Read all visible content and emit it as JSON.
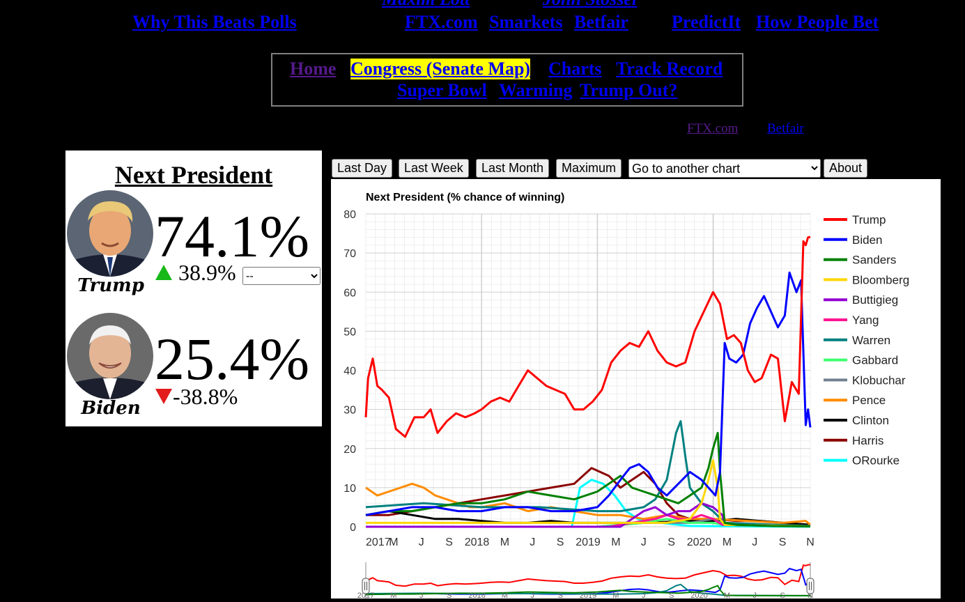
{
  "header": {
    "partial_links": [
      "Maxim Lott",
      "John Stossel"
    ],
    "links": [
      "Why This Beats Polls",
      "FTX.com",
      "Smarkets",
      "Betfair",
      "PredictIt",
      "How People Bet"
    ]
  },
  "nav": {
    "row1": [
      "Home",
      "Congress (Senate Map)",
      "Charts",
      "Track Record"
    ],
    "row2": [
      "Super Bowl",
      "Warming",
      "Trump Out?"
    ]
  },
  "source_links": [
    "FTX.com",
    "Betfair"
  ],
  "panel": {
    "title": "Next President",
    "candidates": [
      {
        "name": "Trump",
        "pct": "74.1%",
        "change": "38.9%",
        "direction": "up",
        "select_value": "--"
      },
      {
        "name": "Biden",
        "pct": "25.4%",
        "change": "-38.8%",
        "direction": "down"
      }
    ]
  },
  "controls": {
    "buttons": [
      "Last Day",
      "Last Week",
      "Last Month",
      "Maximum"
    ],
    "goto_placeholder": "Go to another chart",
    "about": "About"
  },
  "chart_data": {
    "type": "line",
    "title": "Next President (% chance of winning)",
    "xlabel": "",
    "ylabel": "",
    "ylim": [
      0,
      80
    ],
    "yticks": [
      0,
      10,
      20,
      30,
      40,
      50,
      60,
      70,
      80
    ],
    "xticks": [
      "2017",
      "M",
      "J",
      "S",
      "2018",
      "M",
      "J",
      "S",
      "2019",
      "M",
      "J",
      "S",
      "2020",
      "M",
      "J",
      "S",
      "N"
    ],
    "x_range": [
      "2017-01",
      "2020-11"
    ],
    "grid": true,
    "legend_position": "right",
    "series": [
      {
        "name": "Trump",
        "color": "#ff0000",
        "x": [
          2017.0,
          2017.02,
          2017.06,
          2017.1,
          2017.14,
          2017.2,
          2017.26,
          2017.34,
          2017.42,
          2017.5,
          2017.56,
          2017.62,
          2017.7,
          2017.78,
          2017.86,
          2017.94,
          2018.0,
          2018.08,
          2018.16,
          2018.24,
          2018.32,
          2018.4,
          2018.48,
          2018.56,
          2018.64,
          2018.72,
          2018.8,
          2018.88,
          2018.96,
          2019.04,
          2019.12,
          2019.2,
          2019.28,
          2019.36,
          2019.44,
          2019.52,
          2019.6,
          2019.68,
          2019.76,
          2019.84,
          2019.92,
          2020.0,
          2020.06,
          2020.12,
          2020.18,
          2020.24,
          2020.3,
          2020.36,
          2020.42,
          2020.5,
          2020.56,
          2020.62,
          2020.68,
          2020.74,
          2020.78,
          2020.8,
          2020.82,
          2020.84
        ],
        "y": [
          28,
          38,
          43,
          36,
          35,
          33,
          25,
          23,
          28,
          28,
          30,
          24,
          27,
          29,
          28,
          29,
          30,
          32,
          33,
          32,
          36,
          40,
          38,
          36,
          35,
          34,
          30,
          30,
          32,
          35,
          42,
          45,
          47,
          46,
          50,
          45,
          42,
          41,
          42,
          50,
          55,
          60,
          57,
          48,
          49,
          47,
          40,
          37,
          38,
          44,
          43,
          27,
          37,
          34,
          73,
          72,
          74,
          74.1
        ]
      },
      {
        "name": "Biden",
        "color": "#0000ff",
        "x": [
          2017.0,
          2017.2,
          2017.4,
          2017.6,
          2017.8,
          2018.0,
          2018.2,
          2018.4,
          2018.6,
          2018.8,
          2019.0,
          2019.1,
          2019.2,
          2019.28,
          2019.36,
          2019.44,
          2019.52,
          2019.6,
          2019.7,
          2019.8,
          2019.9,
          2019.96,
          2020.02,
          2020.06,
          2020.1,
          2020.14,
          2020.2,
          2020.26,
          2020.32,
          2020.38,
          2020.44,
          2020.5,
          2020.56,
          2020.62,
          2020.66,
          2020.72,
          2020.76,
          2020.8,
          2020.82,
          2020.84
        ],
        "y": [
          3,
          4,
          5,
          5,
          4,
          4,
          5,
          5,
          4,
          4,
          5,
          8,
          12,
          15,
          16,
          14,
          10,
          8,
          11,
          14,
          12,
          10,
          8,
          14,
          47,
          43,
          42,
          44,
          52,
          56,
          59,
          55,
          51,
          54,
          65,
          60,
          63,
          26,
          30,
          25.4
        ]
      },
      {
        "name": "Sanders",
        "color": "#008000",
        "x": [
          2017.0,
          2017.2,
          2017.4,
          2017.6,
          2017.8,
          2018.0,
          2018.2,
          2018.4,
          2018.6,
          2018.8,
          2019.0,
          2019.1,
          2019.2,
          2019.3,
          2019.4,
          2019.5,
          2019.6,
          2019.7,
          2019.8,
          2019.9,
          2019.96,
          2020.0,
          2020.04,
          2020.06,
          2020.1,
          2020.2,
          2020.5,
          2020.84
        ],
        "y": [
          3,
          4,
          4,
          5,
          6,
          6,
          7,
          9,
          8,
          7,
          9,
          11,
          13,
          10,
          9,
          8,
          7,
          6,
          8,
          10,
          15,
          20,
          24,
          14,
          1,
          0.5,
          0.2,
          0.1
        ]
      },
      {
        "name": "Bloomberg",
        "color": "#ffd700",
        "x": [
          2017.0,
          2017.5,
          2018.0,
          2018.5,
          2019.0,
          2019.3,
          2019.6,
          2019.8,
          2019.9,
          2019.96,
          2020.0,
          2020.04,
          2020.06,
          2020.1,
          2020.84
        ],
        "y": [
          1,
          1,
          1,
          1,
          1,
          1,
          1,
          2,
          6,
          12,
          17,
          10,
          2,
          0.5,
          0.1
        ]
      },
      {
        "name": "Buttigieg",
        "color": "#9400d3",
        "x": [
          2017.0,
          2019.2,
          2019.3,
          2019.4,
          2019.5,
          2019.6,
          2019.7,
          2019.8,
          2019.9,
          2020.0,
          2020.08,
          2020.1,
          2020.84
        ],
        "y": [
          0,
          0,
          2,
          4,
          5,
          3,
          4,
          4,
          6,
          5,
          3,
          0.5,
          0.1
        ]
      },
      {
        "name": "Yang",
        "color": "#ff1493",
        "x": [
          2017.0,
          2019.1,
          2019.3,
          2019.5,
          2019.6,
          2019.7,
          2019.8,
          2019.9,
          2020.0,
          2020.08,
          2020.84
        ],
        "y": [
          0,
          0,
          1,
          2,
          3,
          2,
          2,
          3,
          2,
          0.5,
          0.1
        ]
      },
      {
        "name": "Warren",
        "color": "#008080",
        "x": [
          2017.0,
          2017.5,
          2018.0,
          2018.5,
          2019.0,
          2019.2,
          2019.4,
          2019.5,
          2019.6,
          2019.68,
          2019.72,
          2019.76,
          2019.8,
          2019.9,
          2020.0,
          2020.1,
          2020.84
        ],
        "y": [
          5,
          6,
          5,
          5,
          4,
          4,
          5,
          7,
          12,
          24,
          27,
          18,
          10,
          6,
          4,
          1,
          0.2
        ]
      },
      {
        "name": "Gabbard",
        "color": "#3cff6e",
        "x": [
          2017.0,
          2019.0,
          2019.4,
          2019.6,
          2019.8,
          2020.0,
          2020.1,
          2020.84
        ],
        "y": [
          0,
          0,
          1,
          2,
          1,
          1,
          0.5,
          0.2
        ]
      },
      {
        "name": "Klobuchar",
        "color": "#708090",
        "x": [
          2017.0,
          2019.0,
          2019.4,
          2019.8,
          2020.0,
          2020.1,
          2020.84
        ],
        "y": [
          0,
          0,
          1,
          1,
          2,
          0.5,
          0.1
        ]
      },
      {
        "name": "Pence",
        "color": "#ff8c00",
        "x": [
          2017.0,
          2017.1,
          2017.2,
          2017.3,
          2017.4,
          2017.5,
          2017.6,
          2017.7,
          2017.8,
          2017.9,
          2018.0,
          2018.2,
          2018.4,
          2018.6,
          2018.8,
          2019.0,
          2019.2,
          2019.4,
          2019.6,
          2019.8,
          2020.0,
          2020.3,
          2020.6,
          2020.8,
          2020.84
        ],
        "y": [
          10,
          8,
          9,
          10,
          11,
          10,
          8,
          7,
          6,
          5,
          5,
          6,
          4,
          5,
          4,
          3,
          3,
          2,
          3,
          2,
          2,
          1.5,
          1,
          1.5,
          0.5
        ]
      },
      {
        "name": "Clinton",
        "color": "#000000",
        "x": [
          2017.0,
          2017.2,
          2017.4,
          2017.6,
          2017.8,
          2018.0,
          2018.2,
          2018.4,
          2018.6,
          2018.8,
          2019.0,
          2019.4,
          2019.8,
          2020.0,
          2020.2,
          2020.4,
          2020.6,
          2020.84
        ],
        "y": [
          3,
          4,
          3,
          2,
          2,
          1.5,
          1,
          1,
          1.5,
          1,
          1,
          1,
          1.5,
          1.5,
          2,
          1.5,
          1,
          0.5
        ]
      },
      {
        "name": "Harris",
        "color": "#8b0000",
        "x": [
          2017.0,
          2017.2,
          2017.4,
          2017.6,
          2017.8,
          2018.0,
          2018.2,
          2018.4,
          2018.6,
          2018.8,
          2018.95,
          2019.1,
          2019.2,
          2019.3,
          2019.4,
          2019.5,
          2019.6,
          2019.7,
          2019.8,
          2019.9,
          2020.0,
          2020.2,
          2020.4,
          2020.6,
          2020.84
        ],
        "y": [
          3,
          3,
          4,
          5,
          6,
          7,
          8,
          9,
          10,
          11,
          15,
          13,
          10,
          12,
          14,
          11,
          6,
          3,
          2,
          2,
          2,
          1.5,
          1.5,
          1,
          0.5
        ]
      },
      {
        "name": "ORourke",
        "color": "#00ffff",
        "x": [
          2017.0,
          2018.7,
          2018.78,
          2018.85,
          2018.95,
          2019.05,
          2019.15,
          2019.25,
          2019.35,
          2019.45,
          2019.55,
          2019.7,
          2019.8,
          2020.84
        ],
        "y": [
          0,
          0,
          0,
          10,
          12,
          11,
          8,
          4,
          2,
          1,
          1,
          0.5,
          0.2,
          0
        ]
      }
    ]
  }
}
